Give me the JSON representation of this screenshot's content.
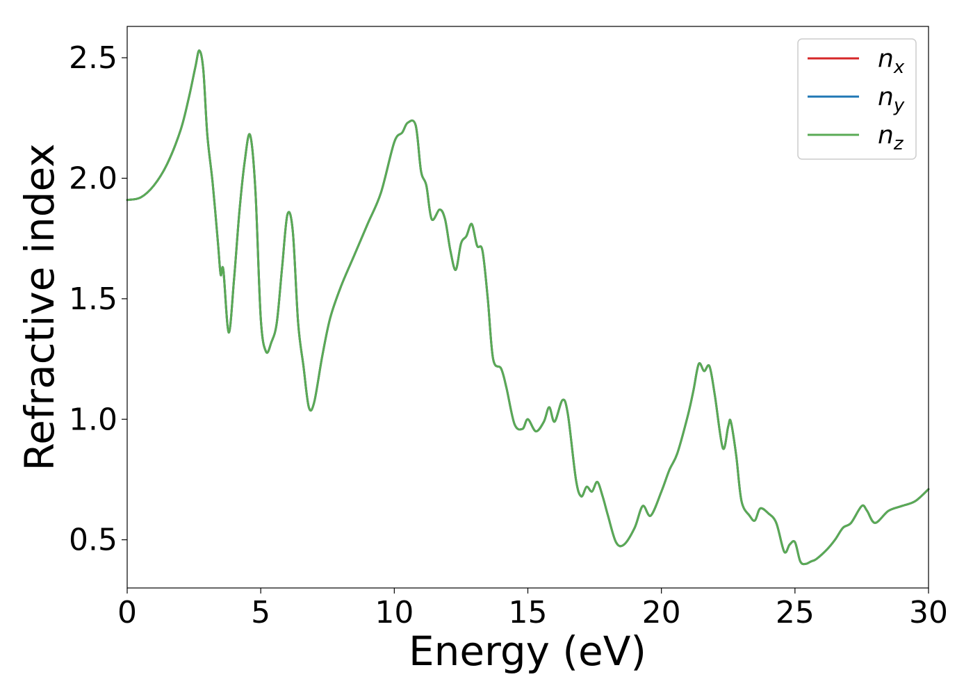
{
  "chart_data": {
    "type": "line",
    "title": "",
    "xlabel": "Energy (eV)",
    "ylabel": "Refractive index",
    "xlim": [
      0,
      30
    ],
    "ylim": [
      0.3,
      2.63
    ],
    "xticks": [
      0,
      5,
      10,
      15,
      20,
      25,
      30
    ],
    "xtick_labels": [
      "0",
      "5",
      "10",
      "15",
      "20",
      "25",
      "30"
    ],
    "yticks": [
      0.5,
      1.0,
      1.5,
      2.0,
      2.5
    ],
    "ytick_labels": [
      "0.5",
      "1.0",
      "1.5",
      "2.0",
      "2.5"
    ],
    "grid": false,
    "legend_position": "top-right",
    "x": [
      0,
      0.5,
      1.0,
      1.5,
      2.0,
      2.3,
      2.55,
      2.7,
      2.85,
      3.0,
      3.2,
      3.4,
      3.5,
      3.6,
      3.8,
      4.0,
      4.2,
      4.4,
      4.6,
      4.8,
      5.0,
      5.2,
      5.4,
      5.6,
      5.8,
      6.0,
      6.2,
      6.4,
      6.6,
      6.8,
      7.0,
      7.3,
      7.6,
      8.0,
      8.5,
      9.0,
      9.5,
      10.0,
      10.3,
      10.5,
      10.8,
      11.0,
      11.2,
      11.4,
      11.7,
      11.9,
      12.1,
      12.3,
      12.5,
      12.7,
      12.9,
      13.1,
      13.3,
      13.5,
      13.7,
      14.0,
      14.2,
      14.5,
      14.8,
      15.0,
      15.3,
      15.6,
      15.8,
      16.0,
      16.3,
      16.5,
      16.8,
      17.0,
      17.2,
      17.4,
      17.6,
      17.8,
      18.0,
      18.3,
      18.6,
      19.0,
      19.3,
      19.6,
      20.0,
      20.3,
      20.6,
      21.0,
      21.2,
      21.4,
      21.6,
      21.8,
      22.0,
      22.3,
      22.5,
      22.6,
      22.8,
      23.0,
      23.3,
      23.5,
      23.7,
      24.0,
      24.3,
      24.6,
      24.8,
      25.0,
      25.2,
      25.4,
      25.6,
      25.8,
      26.2,
      26.5,
      26.8,
      27.1,
      27.5,
      27.7,
      28.0,
      28.5,
      29.0,
      29.5,
      30.0
    ],
    "series": [
      {
        "name": "n_x",
        "color": "#d62728",
        "values": [
          1.91,
          1.92,
          1.97,
          2.06,
          2.2,
          2.33,
          2.46,
          2.53,
          2.45,
          2.18,
          1.98,
          1.73,
          1.6,
          1.62,
          1.36,
          1.58,
          1.86,
          2.07,
          2.18,
          1.95,
          1.42,
          1.28,
          1.32,
          1.4,
          1.63,
          1.85,
          1.78,
          1.4,
          1.22,
          1.05,
          1.07,
          1.26,
          1.42,
          1.55,
          1.68,
          1.81,
          1.94,
          2.15,
          2.19,
          2.23,
          2.22,
          2.03,
          1.97,
          1.83,
          1.87,
          1.83,
          1.7,
          1.62,
          1.73,
          1.76,
          1.81,
          1.72,
          1.7,
          1.5,
          1.25,
          1.21,
          1.13,
          0.98,
          0.96,
          1.0,
          0.95,
          0.99,
          1.05,
          0.99,
          1.08,
          1.02,
          0.75,
          0.68,
          0.72,
          0.7,
          0.74,
          0.68,
          0.6,
          0.49,
          0.48,
          0.55,
          0.64,
          0.6,
          0.7,
          0.79,
          0.86,
          1.02,
          1.12,
          1.23,
          1.2,
          1.22,
          1.1,
          0.88,
          0.97,
          0.99,
          0.85,
          0.66,
          0.6,
          0.58,
          0.63,
          0.61,
          0.57,
          0.45,
          0.48,
          0.49,
          0.41,
          0.4,
          0.41,
          0.42,
          0.46,
          0.5,
          0.55,
          0.57,
          0.64,
          0.62,
          0.57,
          0.62,
          0.64,
          0.66,
          0.71
        ]
      },
      {
        "name": "n_y",
        "color": "#1f77b4",
        "values": [
          1.91,
          1.92,
          1.97,
          2.06,
          2.2,
          2.33,
          2.46,
          2.53,
          2.45,
          2.18,
          1.98,
          1.73,
          1.6,
          1.62,
          1.36,
          1.58,
          1.86,
          2.07,
          2.18,
          1.95,
          1.42,
          1.28,
          1.32,
          1.4,
          1.63,
          1.85,
          1.78,
          1.4,
          1.22,
          1.05,
          1.07,
          1.26,
          1.42,
          1.55,
          1.68,
          1.81,
          1.94,
          2.15,
          2.19,
          2.23,
          2.22,
          2.03,
          1.97,
          1.83,
          1.87,
          1.83,
          1.7,
          1.62,
          1.73,
          1.76,
          1.81,
          1.72,
          1.7,
          1.5,
          1.25,
          1.21,
          1.13,
          0.98,
          0.96,
          1.0,
          0.95,
          0.99,
          1.05,
          0.99,
          1.08,
          1.02,
          0.75,
          0.68,
          0.72,
          0.7,
          0.74,
          0.68,
          0.6,
          0.49,
          0.48,
          0.55,
          0.64,
          0.6,
          0.7,
          0.79,
          0.86,
          1.02,
          1.12,
          1.23,
          1.2,
          1.22,
          1.1,
          0.88,
          0.97,
          0.99,
          0.85,
          0.66,
          0.6,
          0.58,
          0.63,
          0.61,
          0.57,
          0.45,
          0.48,
          0.49,
          0.41,
          0.4,
          0.41,
          0.42,
          0.46,
          0.5,
          0.55,
          0.57,
          0.64,
          0.62,
          0.57,
          0.62,
          0.64,
          0.66,
          0.71
        ]
      },
      {
        "name": "n_z",
        "color": "#5aaa55",
        "values": [
          1.91,
          1.92,
          1.97,
          2.06,
          2.2,
          2.33,
          2.46,
          2.53,
          2.45,
          2.18,
          1.98,
          1.73,
          1.6,
          1.62,
          1.36,
          1.58,
          1.86,
          2.07,
          2.18,
          1.95,
          1.42,
          1.28,
          1.32,
          1.4,
          1.63,
          1.85,
          1.78,
          1.4,
          1.22,
          1.05,
          1.07,
          1.26,
          1.42,
          1.55,
          1.68,
          1.81,
          1.94,
          2.15,
          2.19,
          2.23,
          2.22,
          2.03,
          1.97,
          1.83,
          1.87,
          1.83,
          1.7,
          1.62,
          1.73,
          1.76,
          1.81,
          1.72,
          1.7,
          1.5,
          1.25,
          1.21,
          1.13,
          0.98,
          0.96,
          1.0,
          0.95,
          0.99,
          1.05,
          0.99,
          1.08,
          1.02,
          0.75,
          0.68,
          0.72,
          0.7,
          0.74,
          0.68,
          0.6,
          0.49,
          0.48,
          0.55,
          0.64,
          0.6,
          0.7,
          0.79,
          0.86,
          1.02,
          1.12,
          1.23,
          1.2,
          1.22,
          1.1,
          0.88,
          0.97,
          0.99,
          0.85,
          0.66,
          0.6,
          0.58,
          0.63,
          0.61,
          0.57,
          0.45,
          0.48,
          0.49,
          0.41,
          0.4,
          0.41,
          0.42,
          0.46,
          0.5,
          0.55,
          0.57,
          0.64,
          0.62,
          0.57,
          0.62,
          0.64,
          0.66,
          0.71
        ]
      }
    ],
    "legend": [
      {
        "base": "n",
        "sub": "x"
      },
      {
        "base": "n",
        "sub": "y"
      },
      {
        "base": "n",
        "sub": "z"
      }
    ]
  }
}
